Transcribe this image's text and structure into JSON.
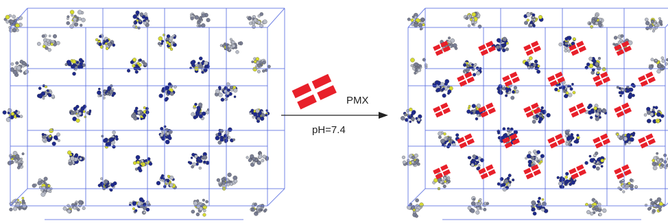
{
  "reaction": {
    "reagent": "PMX",
    "condition": "pH=7.4"
  }
}
